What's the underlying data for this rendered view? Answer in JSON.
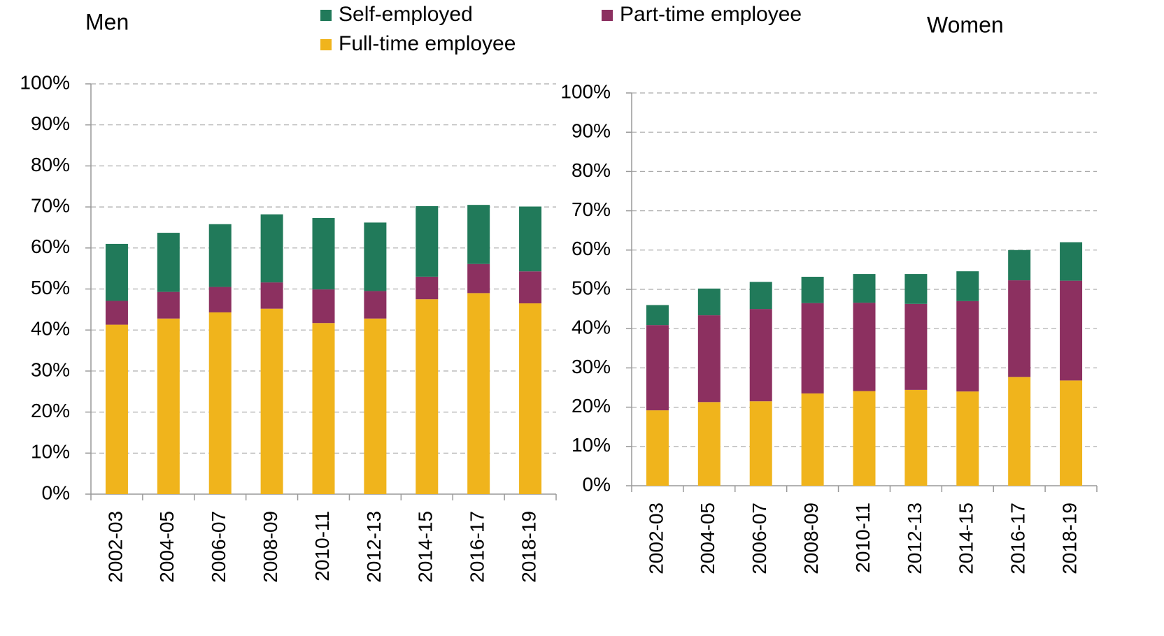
{
  "chart_data": [
    {
      "type": "stacked-bar",
      "title": "Men",
      "categories": [
        "2002-03",
        "2004-05",
        "2006-07",
        "2008-09",
        "2010-11",
        "2012-13",
        "2014-15",
        "2016-17",
        "2018-19"
      ],
      "series": [
        {
          "name": "Full-time employee",
          "color": "#f0b41c",
          "values": [
            41.3,
            42.8,
            44.3,
            45.2,
            41.7,
            42.8,
            47.5,
            49.0,
            46.5
          ]
        },
        {
          "name": "Part-time employee",
          "color": "#8c3060",
          "values": [
            5.8,
            6.5,
            6.2,
            6.4,
            8.2,
            6.7,
            5.5,
            7.1,
            7.8
          ]
        },
        {
          "name": "Self-employed",
          "color": "#217a5a",
          "values": [
            13.9,
            14.4,
            15.3,
            16.6,
            17.4,
            16.7,
            17.2,
            14.4,
            15.8
          ]
        }
      ],
      "ylim": [
        0,
        100
      ],
      "yticks": [
        {
          "value": 0,
          "label": "0%"
        },
        {
          "value": 10,
          "label": "10%"
        },
        {
          "value": 20,
          "label": "20%"
        },
        {
          "value": 30,
          "label": "30%"
        },
        {
          "value": 40,
          "label": "40%"
        },
        {
          "value": 50,
          "label": "50%"
        },
        {
          "value": 60,
          "label": "60%"
        },
        {
          "value": 70,
          "label": "70%"
        },
        {
          "value": 80,
          "label": "80%"
        },
        {
          "value": 90,
          "label": "90%"
        },
        {
          "value": 100,
          "label": "100%"
        }
      ],
      "grid": true
    },
    {
      "type": "stacked-bar",
      "title": "Women",
      "categories": [
        "2002-03",
        "2004-05",
        "2006-07",
        "2008-09",
        "2010-11",
        "2012-13",
        "2014-15",
        "2016-17",
        "2018-19"
      ],
      "series": [
        {
          "color": "#f0b41c",
          "values": [
            19.2,
            21.3,
            21.5,
            23.5,
            24.1,
            24.4,
            24.0,
            27.7,
            26.8
          ]
        },
        {
          "color": "#8c3060",
          "values": [
            21.7,
            22.1,
            23.5,
            23.0,
            22.5,
            21.9,
            23.0,
            24.6,
            25.4
          ]
        },
        {
          "color": "#217a5a",
          "values": [
            5.1,
            6.8,
            6.9,
            6.7,
            7.3,
            7.6,
            7.6,
            7.7,
            9.8
          ]
        }
      ],
      "ylim": [
        0,
        100
      ],
      "yticks": [
        {
          "value": 0,
          "label": "0%"
        },
        {
          "value": 10,
          "label": "10%"
        },
        {
          "value": 20,
          "label": "20%"
        },
        {
          "value": 30,
          "label": "30%"
        },
        {
          "value": 40,
          "label": "40%"
        },
        {
          "value": 50,
          "label": "50%"
        },
        {
          "value": 60,
          "label": "60%"
        },
        {
          "value": 70,
          "label": "70%"
        },
        {
          "value": 80,
          "label": "80%"
        },
        {
          "value": 90,
          "label": "90%"
        },
        {
          "value": 100,
          "label": "100%"
        }
      ],
      "grid": true
    }
  ]
}
